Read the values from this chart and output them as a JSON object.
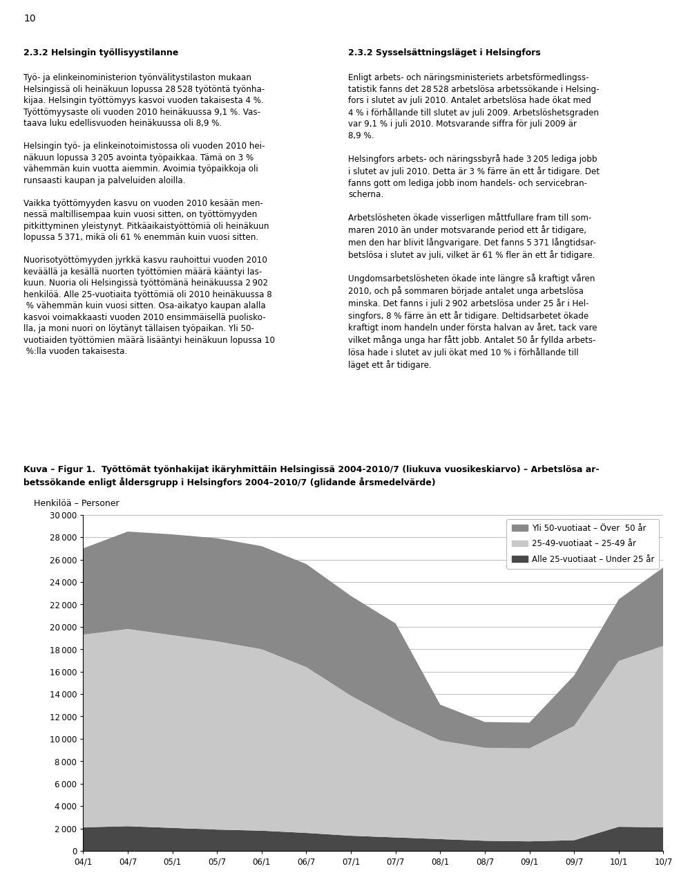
{
  "ylabel": "Henkilöä – Personer",
  "xtick_labels": [
    "04/1",
    "04/7",
    "05/1",
    "05/7",
    "06/1",
    "06/7",
    "07/1",
    "07/7",
    "08/1",
    "08/7",
    "09/1",
    "09/7",
    "10/1",
    "10/7"
  ],
  "ytick_values": [
    0,
    2000,
    4000,
    6000,
    8000,
    10000,
    12000,
    14000,
    16000,
    18000,
    20000,
    22000,
    24000,
    26000,
    28000,
    30000
  ],
  "legend_labels": [
    "Yli 50-vuotiaat – Över  50 år",
    "25-49-vuotiaat – 25-49 år",
    "Alle 25-vuotiaat – Under 25 år"
  ],
  "color_over50": "#898989",
  "color_25to49": "#c8c8c8",
  "color_under25": "#484848",
  "series_under25": [
    2100,
    2200,
    2050,
    1900,
    1800,
    1600,
    1350,
    1200,
    1050,
    900,
    850,
    950,
    2150,
    2100
  ],
  "series_25to49": [
    17200,
    17600,
    17200,
    16800,
    16200,
    14800,
    12500,
    10500,
    8800,
    8300,
    8300,
    10200,
    14800,
    16200
  ],
  "series_over50": [
    7700,
    8700,
    9000,
    9200,
    9200,
    9200,
    8900,
    8600,
    3200,
    2300,
    2300,
    4500,
    5500,
    7000
  ],
  "page_number": "10",
  "background_color": "#ffffff",
  "figsize": [
    9.6,
    12.63
  ],
  "dpi": 100,
  "ylim": [
    0,
    30000
  ],
  "xlim": [
    0,
    13
  ],
  "caption_bold": "Kuva – Figur 1.  Työttömät työnhakijat ikäryhmittäin Helsingissä 2004-2010/7 (liukuva vuosikeskiarvo) – Arbetslösa ar-",
  "caption_bold2": "betssökande enligt åldersgrupp i Helsingfors 2004–2010/7 (glidande årsmedelvärde)"
}
